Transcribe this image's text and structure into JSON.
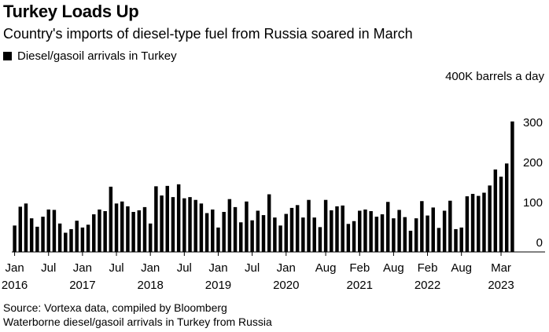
{
  "header": {
    "title": "Turkey Loads Up",
    "subtitle": "Country's imports of diesel-type fuel from Russia soared in March"
  },
  "legend": {
    "label": "Diesel/gasoil arrivals in Turkey",
    "color": "#000000"
  },
  "footer": {
    "source": "Source: Vortexa data, compiled by Bloomberg",
    "note": "Waterborne diesel/gasoil arrivals in Turkey from Russia"
  },
  "chart_data": {
    "type": "bar",
    "title": "Turkey Loads Up",
    "ylabel": "400K barrels a day",
    "unit_label": "400K barrels a day",
    "ylim": [
      0,
      400
    ],
    "yticks": [
      0,
      100,
      200,
      300
    ],
    "bar_color": "#000000",
    "series": [
      {
        "name": "Diesel/gasoil arrivals in Turkey",
        "values": [
          66,
          113,
          121,
          84,
          63,
          88,
          106,
          105,
          71,
          48,
          57,
          78,
          61,
          68,
          94,
          106,
          102,
          163,
          121,
          126,
          114,
          100,
          104,
          112,
          71,
          164,
          141,
          165,
          137,
          169,
          134,
          137,
          130,
          121,
          97,
          106,
          61,
          100,
          132,
          112,
          74,
          126,
          79,
          103,
          92,
          144,
          86,
          66,
          95,
          110,
          117,
          86,
          130,
          86,
          62,
          130,
          104,
          114,
          116,
          70,
          77,
          103,
          106,
          102,
          88,
          94,
          125,
          84,
          105,
          87,
          53,
          84,
          127,
          91,
          111,
          60,
          103,
          128,
          57,
          61,
          139,
          145,
          140,
          148,
          166,
          206,
          188,
          221,
          326
        ]
      }
    ],
    "x_ticks": [
      {
        "index": 0,
        "month": "Jan",
        "year": "2016"
      },
      {
        "index": 6,
        "month": "Jul",
        "year": ""
      },
      {
        "index": 12,
        "month": "Jan",
        "year": "2017"
      },
      {
        "index": 18,
        "month": "Jul",
        "year": ""
      },
      {
        "index": 24,
        "month": "Jan",
        "year": "2018"
      },
      {
        "index": 30,
        "month": "Jul",
        "year": ""
      },
      {
        "index": 36,
        "month": "Jan",
        "year": "2019"
      },
      {
        "index": 42,
        "month": "Jul",
        "year": ""
      },
      {
        "index": 48,
        "month": "Jan",
        "year": "2020"
      },
      {
        "index": 55,
        "month": "Aug",
        "year": ""
      },
      {
        "index": 61,
        "month": "Feb",
        "year": "2021"
      },
      {
        "index": 67,
        "month": "Aug",
        "year": ""
      },
      {
        "index": 73,
        "month": "Feb",
        "year": "2022"
      },
      {
        "index": 79,
        "month": "Aug",
        "year": ""
      },
      {
        "index": 86,
        "month": "Mar",
        "year": "2023"
      }
    ]
  }
}
